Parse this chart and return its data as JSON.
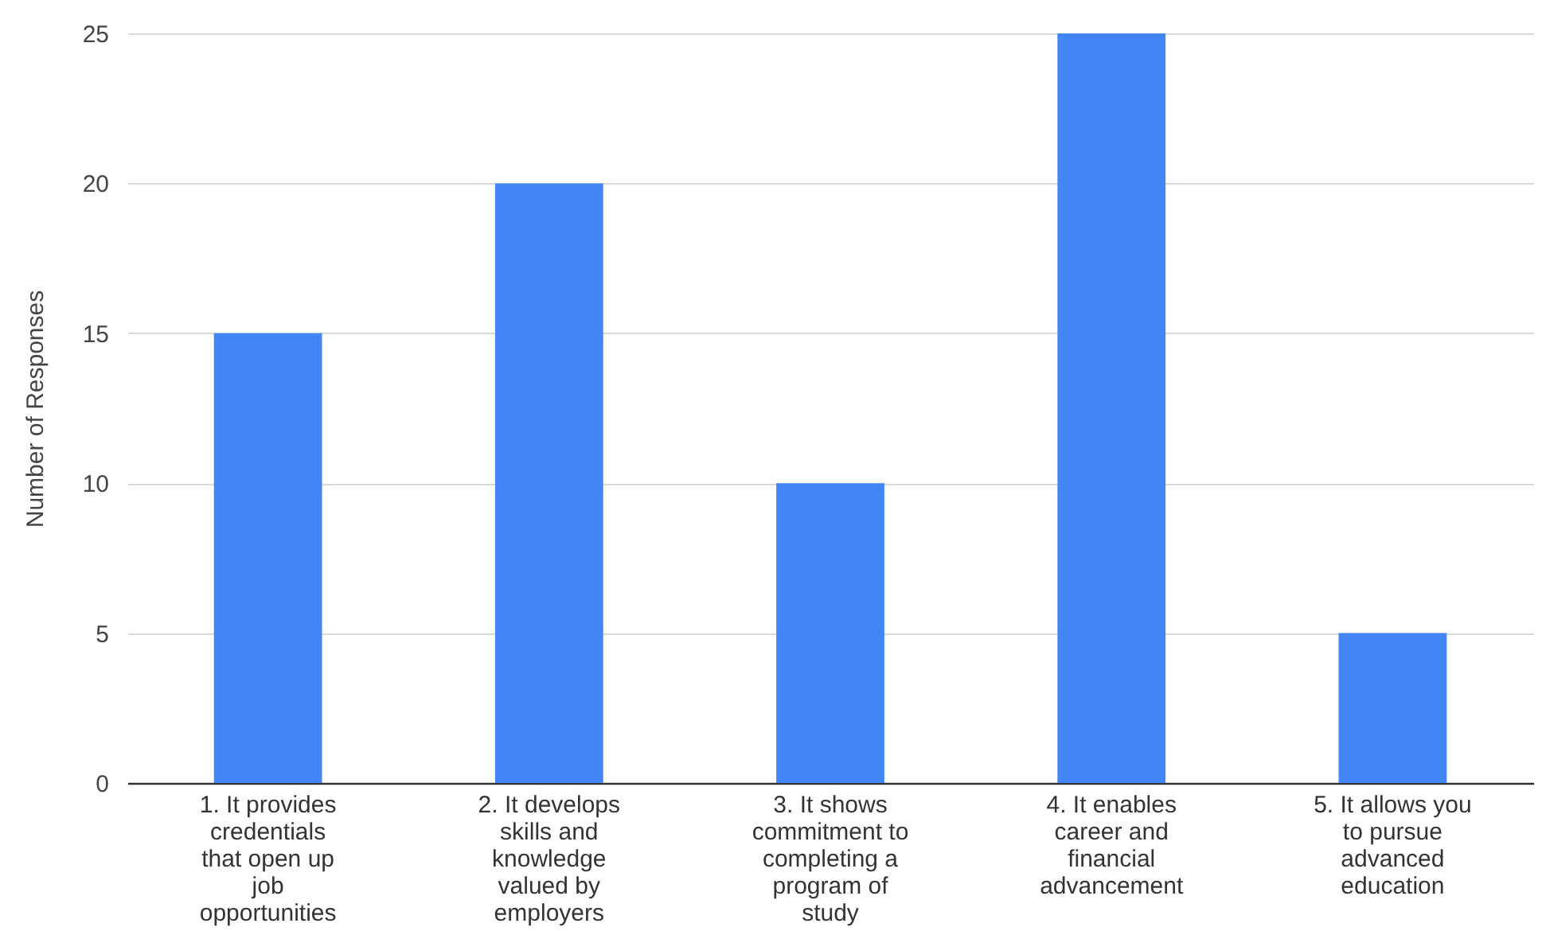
{
  "chart_data": {
    "type": "bar",
    "ylabel": "Number of Responses",
    "categories": [
      "1. It provides credentials that open up job opportunities",
      "2. It develops skills and knowledge valued by employers",
      "3. It shows commitment to completing a program of study",
      "4. It enables career and financial advancement",
      "5. It allows you to pursue advanced education"
    ],
    "values": [
      15,
      20,
      10,
      25,
      5
    ],
    "color": "#4285f4",
    "ylim": [
      0,
      25
    ],
    "yticks": [
      0,
      5,
      10,
      15,
      20,
      25
    ],
    "grid": "y"
  }
}
